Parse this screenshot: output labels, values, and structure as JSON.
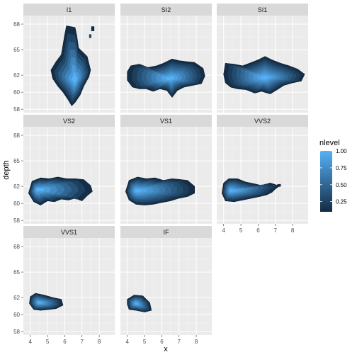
{
  "chart_data": {
    "type": "density2d_filled",
    "xlabel": "x",
    "ylabel": "depth",
    "xlim": [
      3.6,
      8.9
    ],
    "ylim": [
      57.6,
      69.0
    ],
    "x_ticks": [
      4,
      5,
      6,
      7,
      8
    ],
    "y_ticks": [
      58,
      60,
      62,
      65,
      68
    ],
    "y_tick_labels": [
      "58",
      "60",
      "62",
      "65",
      "68"
    ],
    "facet_order": [
      "I1",
      "SI2",
      "SI1",
      "VS2",
      "VS1",
      "VVS2",
      "VVS1",
      "IF"
    ],
    "facets": [
      {
        "label": "I1",
        "levels": 7,
        "peak": {
          "x": 6.6,
          "y": 61.4
        },
        "outline": [
          [
            6.1,
            67.8
          ],
          [
            6.6,
            67.6
          ],
          [
            6.7,
            66.6
          ],
          [
            6.8,
            65.2
          ],
          [
            7.3,
            64.2
          ],
          [
            7.5,
            62.6
          ],
          [
            7.4,
            61.8
          ],
          [
            7.1,
            60.7
          ],
          [
            6.9,
            59.7
          ],
          [
            6.6,
            58.8
          ],
          [
            6.4,
            58.4
          ],
          [
            6.2,
            59.1
          ],
          [
            5.9,
            60.0
          ],
          [
            5.6,
            60.7
          ],
          [
            5.3,
            61.6
          ],
          [
            5.2,
            62.6
          ],
          [
            5.5,
            63.6
          ],
          [
            5.8,
            64.4
          ],
          [
            5.9,
            65.6
          ],
          [
            6.0,
            66.8
          ]
        ],
        "islands": [
          [
            [
              7.55,
              67.7
            ],
            [
              7.7,
              67.7
            ],
            [
              7.7,
              67.2
            ],
            [
              7.55,
              67.2
            ]
          ]
        ]
      },
      {
        "label": "SI2",
        "levels": 9,
        "peak": {
          "x": 6.5,
          "y": 61.6
        },
        "outline": [
          [
            4.2,
            63.1
          ],
          [
            4.7,
            63.3
          ],
          [
            5.2,
            62.9
          ],
          [
            5.7,
            63.1
          ],
          [
            6.1,
            63.4
          ],
          [
            6.6,
            63.9
          ],
          [
            7.0,
            63.7
          ],
          [
            7.4,
            63.6
          ],
          [
            7.9,
            63.5
          ],
          [
            8.4,
            62.8
          ],
          [
            8.5,
            61.9
          ],
          [
            8.3,
            61.0
          ],
          [
            7.8,
            60.8
          ],
          [
            7.3,
            60.6
          ],
          [
            6.9,
            60.2
          ],
          [
            6.6,
            59.4
          ],
          [
            6.3,
            60.2
          ],
          [
            5.9,
            60.4
          ],
          [
            5.5,
            60.1
          ],
          [
            5.1,
            60.4
          ],
          [
            4.7,
            60.4
          ],
          [
            4.3,
            60.6
          ],
          [
            4.0,
            61.4
          ],
          [
            4.0,
            62.4
          ]
        ],
        "islands": []
      },
      {
        "label": "SI1",
        "levels": 10,
        "peak": {
          "x": 6.4,
          "y": 61.7
        },
        "outline": [
          [
            4.1,
            63.4
          ],
          [
            4.6,
            63.3
          ],
          [
            5.1,
            63.1
          ],
          [
            5.5,
            63.4
          ],
          [
            6.0,
            63.8
          ],
          [
            6.4,
            64.2
          ],
          [
            6.8,
            63.8
          ],
          [
            7.3,
            63.4
          ],
          [
            7.8,
            63.1
          ],
          [
            8.3,
            62.7
          ],
          [
            8.7,
            62.1
          ],
          [
            8.5,
            61.3
          ],
          [
            8.0,
            61.1
          ],
          [
            7.5,
            60.8
          ],
          [
            7.1,
            60.3
          ],
          [
            6.7,
            59.8
          ],
          [
            6.2,
            60.1
          ],
          [
            5.8,
            59.9
          ],
          [
            5.3,
            60.3
          ],
          [
            4.8,
            60.4
          ],
          [
            4.4,
            60.6
          ],
          [
            4.1,
            61.1
          ],
          [
            4.0,
            62.1
          ]
        ],
        "islands": []
      },
      {
        "label": "VS2",
        "levels": 8,
        "peak": {
          "x": 4.4,
          "y": 61.6
        },
        "outline": [
          [
            4.1,
            62.6
          ],
          [
            4.6,
            63.0
          ],
          [
            5.1,
            62.9
          ],
          [
            5.6,
            63.1
          ],
          [
            6.1,
            62.9
          ],
          [
            6.6,
            62.9
          ],
          [
            7.1,
            62.8
          ],
          [
            7.5,
            62.1
          ],
          [
            7.6,
            61.4
          ],
          [
            7.3,
            60.9
          ],
          [
            7.0,
            60.3
          ],
          [
            6.6,
            60.6
          ],
          [
            6.2,
            60.4
          ],
          [
            5.8,
            60.5
          ],
          [
            5.4,
            60.2
          ],
          [
            5.0,
            60.3
          ],
          [
            4.6,
            59.8
          ],
          [
            4.2,
            60.2
          ],
          [
            3.9,
            61.2
          ]
        ],
        "islands": []
      },
      {
        "label": "VS1",
        "levels": 10,
        "peak": {
          "x": 4.5,
          "y": 61.5
        },
        "outline": [
          [
            4.1,
            62.7
          ],
          [
            4.6,
            63.1
          ],
          [
            5.1,
            62.9
          ],
          [
            5.6,
            63.0
          ],
          [
            6.1,
            62.7
          ],
          [
            6.6,
            62.9
          ],
          [
            7.1,
            62.8
          ],
          [
            7.5,
            62.7
          ],
          [
            7.9,
            62.0
          ],
          [
            7.9,
            61.2
          ],
          [
            7.5,
            60.8
          ],
          [
            7.0,
            60.6
          ],
          [
            6.5,
            60.3
          ],
          [
            6.0,
            60.1
          ],
          [
            5.5,
            59.9
          ],
          [
            5.0,
            59.8
          ],
          [
            4.5,
            59.9
          ],
          [
            4.1,
            60.4
          ],
          [
            3.9,
            61.4
          ]
        ],
        "islands": []
      },
      {
        "label": "VVS2",
        "levels": 10,
        "peak": {
          "x": 4.4,
          "y": 61.5
        },
        "outline": [
          [
            4.0,
            62.4
          ],
          [
            4.3,
            62.9
          ],
          [
            4.8,
            62.9
          ],
          [
            5.3,
            62.5
          ],
          [
            5.8,
            62.3
          ],
          [
            6.2,
            62.1
          ],
          [
            6.7,
            62.4
          ],
          [
            7.0,
            62.2
          ],
          [
            7.2,
            62.0
          ],
          [
            7.0,
            61.7
          ],
          [
            6.8,
            61.3
          ],
          [
            6.5,
            61.0
          ],
          [
            6.1,
            60.8
          ],
          [
            5.6,
            60.6
          ],
          [
            5.1,
            60.4
          ],
          [
            4.6,
            60.2
          ],
          [
            4.1,
            60.3
          ],
          [
            3.9,
            61.2
          ]
        ],
        "islands": [
          [
            [
              7.1,
              62.2
            ],
            [
              7.3,
              62.25
            ],
            [
              7.3,
              62.0
            ],
            [
              7.1,
              61.95
            ]
          ]
        ]
      },
      {
        "label": "VVS1",
        "levels": 10,
        "peak": {
          "x": 4.5,
          "y": 61.4
        },
        "outline": [
          [
            4.0,
            62.1
          ],
          [
            4.3,
            62.5
          ],
          [
            4.8,
            62.3
          ],
          [
            5.3,
            62.0
          ],
          [
            5.8,
            61.8
          ],
          [
            5.9,
            61.1
          ],
          [
            5.5,
            60.7
          ],
          [
            5.1,
            60.6
          ],
          [
            4.6,
            60.5
          ],
          [
            4.2,
            60.6
          ],
          [
            3.95,
            61.3
          ]
        ],
        "islands": []
      },
      {
        "label": "IF",
        "levels": 10,
        "peak": {
          "x": 4.5,
          "y": 61.3
        },
        "outline": [
          [
            4.0,
            61.8
          ],
          [
            4.4,
            62.3
          ],
          [
            4.9,
            62.2
          ],
          [
            5.3,
            61.4
          ],
          [
            5.4,
            60.5
          ],
          [
            5.0,
            60.3
          ],
          [
            4.5,
            60.5
          ],
          [
            4.1,
            60.6
          ],
          [
            4.0,
            61.2
          ]
        ],
        "islands": []
      }
    ],
    "legend": {
      "title": "nlevel",
      "ticks": [
        1.0,
        0.75,
        0.5,
        0.25
      ],
      "tick_labels": [
        "1.00",
        "0.75",
        "0.50",
        "0.25"
      ],
      "range": [
        0.1,
        1.0
      ],
      "color_low": "#132b43",
      "color_high": "#56b1f7",
      "placement": "right"
    },
    "colors": {
      "panel_background": "#ebebeb",
      "grid_major": "#ffffff",
      "strip_background": "#d9d9d9"
    }
  }
}
